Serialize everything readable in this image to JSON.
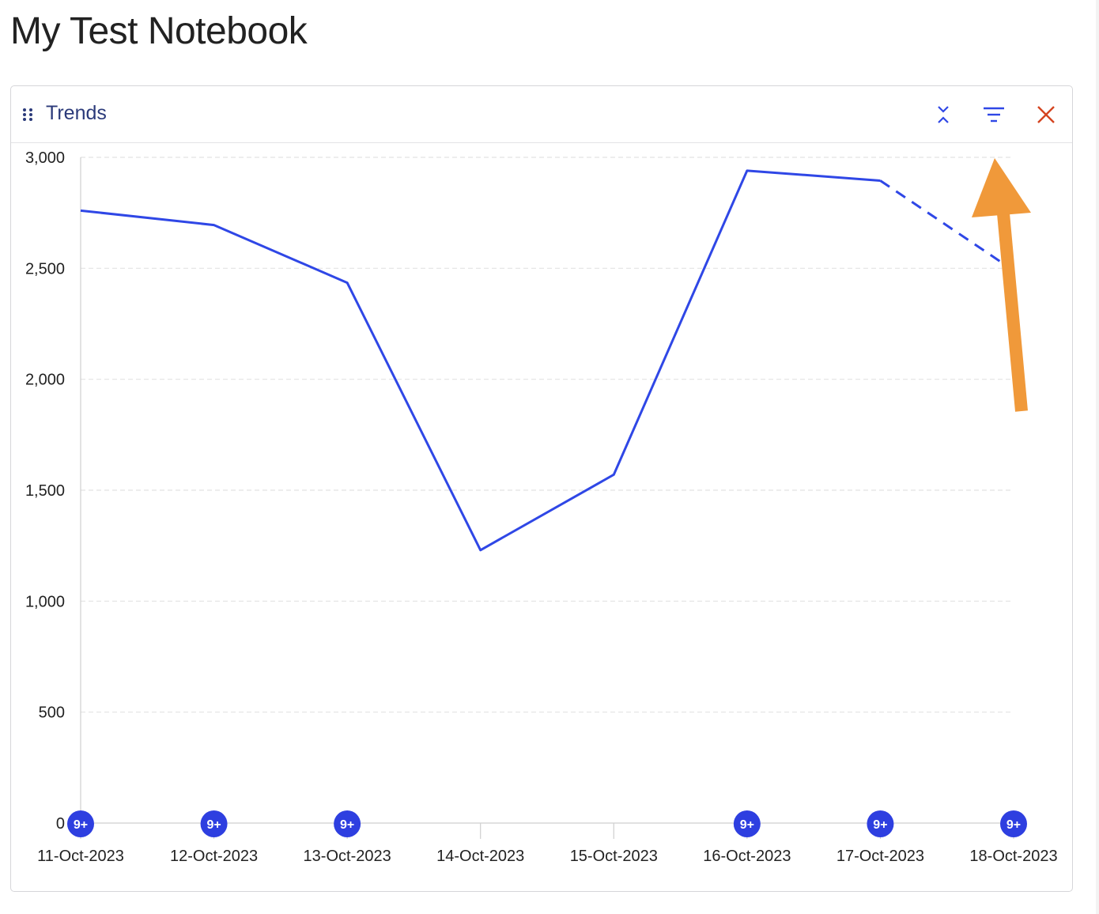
{
  "page": {
    "title": "My Test Notebook"
  },
  "panel": {
    "title": "Trends",
    "icons": {
      "drag": "drag-handle-icon",
      "collapse": "collapse-icon",
      "filter": "filter-icon",
      "close": "close-icon"
    }
  },
  "colors": {
    "line": "#2f47e6",
    "badge": "#2e3fe0",
    "close": "#d44420",
    "annotation_arrow": "#f0993a",
    "icon_blue": "#2f47e6"
  },
  "chart_data": {
    "type": "line",
    "title": "",
    "xlabel": "",
    "ylabel": "",
    "ylim": [
      0,
      3000
    ],
    "yticks": [
      0,
      500,
      1000,
      1500,
      2000,
      2500,
      3000
    ],
    "ytick_labels": [
      "0",
      "500",
      "1,000",
      "1,500",
      "2,000",
      "2,500",
      "3,000"
    ],
    "categories": [
      "11-Oct-2023",
      "12-Oct-2023",
      "13-Oct-2023",
      "14-Oct-2023",
      "15-Oct-2023",
      "16-Oct-2023",
      "17-Oct-2023",
      "18-Oct-2023"
    ],
    "series": [
      {
        "values": [
          2760,
          2695,
          2435,
          1230,
          1570,
          2940,
          2895,
          2490
        ],
        "dashed_from_index": 6
      }
    ],
    "grid": true,
    "badges": [
      {
        "index": 0,
        "label": "9+"
      },
      {
        "index": 1,
        "label": "9+"
      },
      {
        "index": 2,
        "label": "9+"
      },
      {
        "index": 5,
        "label": "9+"
      },
      {
        "index": 6,
        "label": "9+"
      },
      {
        "index": 7,
        "label": "9+"
      }
    ]
  }
}
